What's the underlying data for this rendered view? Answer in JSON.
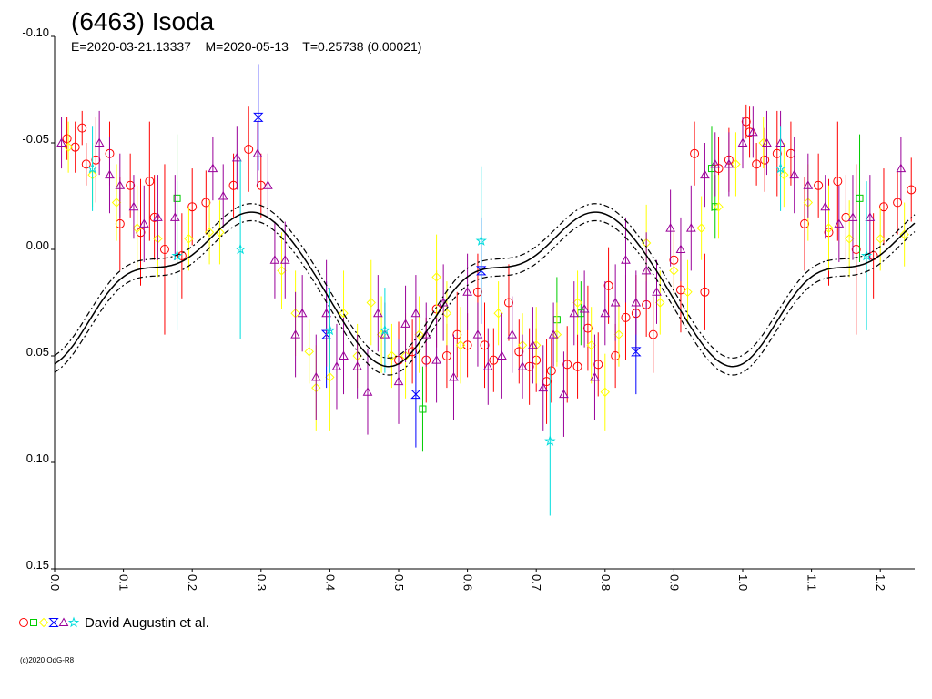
{
  "chart_data": {
    "type": "scatter",
    "title": "(6463) Isoda",
    "subtitle": "E=2020-03-21.13337    M=2020-05-13    T=0.25738 (0.00021)",
    "xlabel": "",
    "ylabel": "",
    "xlim": [
      0.0,
      1.25
    ],
    "ylim": [
      -0.1,
      0.15
    ],
    "y_inverted": true,
    "x_ticks": [
      "0.0",
      "0.1",
      "0.2",
      "0.3",
      "0.4",
      "0.5",
      "0.6",
      "0.7",
      "0.8",
      "0.9",
      "1.0",
      "1.1",
      "1.2"
    ],
    "y_ticks": [
      "-0.10",
      "-0.05",
      "0.00",
      "0.05",
      "0.10",
      "0.15"
    ],
    "grid": false,
    "legend": {
      "position": "bottom-left",
      "label": "David Augustin et al."
    },
    "credit": "(c)2020 OdG-R8",
    "fit_curve": {
      "mean": 0.0152,
      "harmonics": [
        {
          "n": 2,
          "a": 0.0305,
          "b": 0.0005
        },
        {
          "n": 4,
          "a": 0.0055,
          "b": -0.0088
        },
        {
          "n": 6,
          "a": 0.0025,
          "b": 0.001
        }
      ],
      "band": 0.004
    },
    "series": [
      {
        "color": "#ff0000",
        "marker": "circle",
        "points": [
          [
            0.018,
            -0.052,
            0.01
          ],
          [
            0.03,
            -0.048,
            0.012
          ],
          [
            0.04,
            -0.057,
            0.008
          ],
          [
            0.046,
            -0.04,
            0.01
          ],
          [
            0.06,
            -0.042,
            0.02
          ],
          [
            0.08,
            -0.045,
            0.015
          ],
          [
            0.095,
            -0.012,
            0.022
          ],
          [
            0.11,
            -0.03,
            0.015
          ],
          [
            0.125,
            -0.008,
            0.025
          ],
          [
            0.138,
            -0.032,
            0.028
          ],
          [
            0.145,
            -0.015,
            0.02
          ],
          [
            0.16,
            0.0,
            0.04
          ],
          [
            0.185,
            0.003,
            0.02
          ],
          [
            0.2,
            -0.02,
            0.018
          ],
          [
            0.22,
            -0.022,
            0.015
          ],
          [
            0.26,
            -0.03,
            0.015
          ],
          [
            0.282,
            -0.047,
            0.02
          ],
          [
            0.3,
            -0.03,
            0.015
          ],
          [
            0.5,
            0.052,
            0.018
          ],
          [
            0.52,
            0.048,
            0.015
          ],
          [
            0.54,
            0.052,
            0.02
          ],
          [
            0.555,
            0.028,
            0.018
          ],
          [
            0.57,
            0.05,
            0.015
          ],
          [
            0.585,
            0.04,
            0.02
          ],
          [
            0.6,
            0.045,
            0.015
          ],
          [
            0.615,
            0.02,
            0.018
          ],
          [
            0.625,
            0.045,
            0.02
          ],
          [
            0.638,
            0.052,
            0.015
          ],
          [
            0.66,
            0.025,
            0.018
          ],
          [
            0.675,
            0.048,
            0.015
          ],
          [
            0.69,
            0.055,
            0.018
          ],
          [
            0.7,
            0.052,
            0.015
          ],
          [
            0.715,
            0.062,
            0.02
          ],
          [
            0.722,
            0.057,
            0.015
          ],
          [
            0.745,
            0.054,
            0.018
          ],
          [
            0.76,
            0.055,
            0.015
          ],
          [
            0.775,
            0.037,
            0.02
          ],
          [
            0.79,
            0.054,
            0.015
          ],
          [
            0.805,
            0.017,
            0.018
          ],
          [
            0.815,
            0.05,
            0.015
          ],
          [
            0.83,
            0.032,
            0.02
          ],
          [
            0.845,
            0.03,
            0.018
          ],
          [
            0.86,
            0.026,
            0.015
          ],
          [
            0.87,
            0.04,
            0.018
          ],
          [
            0.9,
            0.005,
            0.015
          ],
          [
            0.91,
            0.019,
            0.02
          ],
          [
            0.93,
            -0.045,
            0.015
          ],
          [
            0.945,
            0.02,
            0.018
          ],
          [
            0.965,
            -0.038,
            0.015
          ],
          [
            0.98,
            -0.042,
            0.015
          ],
          [
            1.005,
            -0.06,
            0.008
          ],
          [
            1.01,
            -0.055,
            0.012
          ],
          [
            1.02,
            -0.04,
            0.01
          ],
          [
            1.032,
            -0.042,
            0.015
          ],
          [
            1.05,
            -0.045,
            0.02
          ],
          [
            1.07,
            -0.045,
            0.015
          ],
          [
            1.09,
            -0.012,
            0.022
          ],
          [
            1.11,
            -0.03,
            0.015
          ],
          [
            1.125,
            -0.008,
            0.025
          ],
          [
            1.138,
            -0.032,
            0.028
          ],
          [
            1.15,
            -0.015,
            0.02
          ],
          [
            1.165,
            0.0,
            0.04
          ],
          [
            1.19,
            0.003,
            0.02
          ],
          [
            1.205,
            -0.02,
            0.018
          ],
          [
            1.225,
            -0.022,
            0.015
          ],
          [
            1.245,
            -0.028,
            0.015
          ]
        ]
      },
      {
        "color": "#00cc00",
        "marker": "square",
        "points": [
          [
            0.178,
            -0.024,
            0.03
          ],
          [
            0.535,
            0.075,
            0.02
          ],
          [
            0.73,
            0.033,
            0.02
          ],
          [
            0.765,
            0.03,
            0.015
          ],
          [
            0.955,
            -0.038,
            0.02
          ],
          [
            0.96,
            -0.02,
            0.015
          ],
          [
            1.17,
            -0.024,
            0.03
          ]
        ]
      },
      {
        "color": "#ffff00",
        "marker": "diamond",
        "points": [
          [
            0.02,
            -0.048,
            0.012
          ],
          [
            0.055,
            -0.035,
            0.015
          ],
          [
            0.09,
            -0.022,
            0.018
          ],
          [
            0.12,
            -0.01,
            0.02
          ],
          [
            0.15,
            -0.005,
            0.018
          ],
          [
            0.195,
            -0.005,
            0.015
          ],
          [
            0.225,
            -0.008,
            0.015
          ],
          [
            0.24,
            -0.008,
            0.015
          ],
          [
            0.33,
            0.01,
            0.018
          ],
          [
            0.35,
            0.03,
            0.02
          ],
          [
            0.37,
            0.048,
            0.015
          ],
          [
            0.38,
            0.065,
            0.02
          ],
          [
            0.4,
            0.06,
            0.025
          ],
          [
            0.42,
            0.03,
            0.02
          ],
          [
            0.44,
            0.05,
            0.015
          ],
          [
            0.46,
            0.025,
            0.02
          ],
          [
            0.475,
            0.04,
            0.018
          ],
          [
            0.49,
            0.05,
            0.015
          ],
          [
            0.51,
            0.05,
            0.02
          ],
          [
            0.53,
            0.04,
            0.018
          ],
          [
            0.555,
            0.013,
            0.02
          ],
          [
            0.57,
            0.03,
            0.015
          ],
          [
            0.59,
            0.045,
            0.018
          ],
          [
            0.645,
            0.03,
            0.015
          ],
          [
            0.68,
            0.045,
            0.015
          ],
          [
            0.7,
            0.045,
            0.018
          ],
          [
            0.73,
            0.04,
            0.015
          ],
          [
            0.76,
            0.025,
            0.015
          ],
          [
            0.78,
            0.045,
            0.018
          ],
          [
            0.8,
            0.067,
            0.018
          ],
          [
            0.82,
            0.04,
            0.015
          ],
          [
            0.86,
            -0.003,
            0.018
          ],
          [
            0.88,
            0.025,
            0.015
          ],
          [
            0.9,
            0.01,
            0.018
          ],
          [
            0.92,
            0.02,
            0.015
          ],
          [
            0.94,
            -0.01,
            0.015
          ],
          [
            0.965,
            -0.02,
            0.015
          ],
          [
            0.99,
            -0.04,
            0.015
          ],
          [
            1.03,
            -0.05,
            0.012
          ],
          [
            1.06,
            -0.035,
            0.015
          ],
          [
            1.095,
            -0.022,
            0.018
          ],
          [
            1.125,
            -0.01,
            0.02
          ],
          [
            1.155,
            -0.005,
            0.018
          ],
          [
            1.2,
            -0.005,
            0.015
          ],
          [
            1.235,
            -0.007,
            0.015
          ]
        ]
      },
      {
        "color": "#0000ff",
        "marker": "hourglass",
        "points": [
          [
            0.296,
            -0.062,
            0.025
          ],
          [
            0.395,
            0.04,
            0.025
          ],
          [
            0.525,
            0.068,
            0.025
          ],
          [
            0.62,
            0.01,
            0.025
          ],
          [
            0.845,
            0.048,
            0.02
          ]
        ]
      },
      {
        "color": "#990099",
        "marker": "triangle",
        "points": [
          [
            0.01,
            -0.05,
            0.012
          ],
          [
            0.065,
            -0.05,
            0.015
          ],
          [
            0.08,
            -0.035,
            0.018
          ],
          [
            0.095,
            -0.03,
            0.015
          ],
          [
            0.115,
            -0.02,
            0.015
          ],
          [
            0.13,
            -0.012,
            0.018
          ],
          [
            0.15,
            -0.015,
            0.02
          ],
          [
            0.175,
            -0.015,
            0.02
          ],
          [
            0.23,
            -0.038,
            0.015
          ],
          [
            0.245,
            -0.025,
            0.015
          ],
          [
            0.265,
            -0.043,
            0.015
          ],
          [
            0.295,
            -0.045,
            0.015
          ],
          [
            0.31,
            -0.03,
            0.015
          ],
          [
            0.32,
            0.005,
            0.018
          ],
          [
            0.335,
            0.005,
            0.018
          ],
          [
            0.35,
            0.04,
            0.02
          ],
          [
            0.36,
            0.03,
            0.018
          ],
          [
            0.38,
            0.06,
            0.02
          ],
          [
            0.395,
            0.03,
            0.025
          ],
          [
            0.41,
            0.055,
            0.02
          ],
          [
            0.42,
            0.05,
            0.018
          ],
          [
            0.44,
            0.055,
            0.015
          ],
          [
            0.455,
            0.067,
            0.02
          ],
          [
            0.47,
            0.03,
            0.018
          ],
          [
            0.48,
            0.04,
            0.015
          ],
          [
            0.5,
            0.062,
            0.02
          ],
          [
            0.51,
            0.035,
            0.018
          ],
          [
            0.525,
            0.03,
            0.018
          ],
          [
            0.54,
            0.04,
            0.015
          ],
          [
            0.555,
            0.052,
            0.02
          ],
          [
            0.565,
            0.025,
            0.018
          ],
          [
            0.58,
            0.06,
            0.02
          ],
          [
            0.6,
            0.02,
            0.018
          ],
          [
            0.615,
            0.04,
            0.015
          ],
          [
            0.63,
            0.055,
            0.018
          ],
          [
            0.65,
            0.05,
            0.02
          ],
          [
            0.665,
            0.04,
            0.018
          ],
          [
            0.68,
            0.055,
            0.015
          ],
          [
            0.695,
            0.045,
            0.018
          ],
          [
            0.71,
            0.065,
            0.02
          ],
          [
            0.725,
            0.04,
            0.015
          ],
          [
            0.74,
            0.068,
            0.02
          ],
          [
            0.755,
            0.03,
            0.015
          ],
          [
            0.77,
            0.028,
            0.018
          ],
          [
            0.785,
            0.06,
            0.02
          ],
          [
            0.8,
            0.03,
            0.015
          ],
          [
            0.815,
            0.025,
            0.018
          ],
          [
            0.83,
            0.005,
            0.02
          ],
          [
            0.845,
            0.025,
            0.015
          ],
          [
            0.86,
            0.01,
            0.018
          ],
          [
            0.875,
            0.02,
            0.015
          ],
          [
            0.895,
            -0.01,
            0.018
          ],
          [
            0.91,
            0.0,
            0.015
          ],
          [
            0.925,
            -0.01,
            0.02
          ],
          [
            0.945,
            -0.035,
            0.015
          ],
          [
            0.96,
            -0.04,
            0.015
          ],
          [
            0.98,
            -0.04,
            0.015
          ],
          [
            1.0,
            -0.05,
            0.012
          ],
          [
            1.015,
            -0.055,
            0.012
          ],
          [
            1.035,
            -0.05,
            0.015
          ],
          [
            1.055,
            -0.05,
            0.015
          ],
          [
            1.075,
            -0.035,
            0.018
          ],
          [
            1.095,
            -0.03,
            0.015
          ],
          [
            1.12,
            -0.02,
            0.015
          ],
          [
            1.14,
            -0.012,
            0.018
          ],
          [
            1.16,
            -0.015,
            0.02
          ],
          [
            1.185,
            -0.015,
            0.02
          ],
          [
            1.23,
            -0.038,
            0.015
          ]
        ]
      },
      {
        "color": "#00dddd",
        "marker": "star",
        "points": [
          [
            0.055,
            -0.038,
            0.02
          ],
          [
            0.178,
            0.003,
            0.035
          ],
          [
            0.27,
            0.0,
            0.042
          ],
          [
            0.4,
            0.038,
            0.02
          ],
          [
            0.48,
            0.038,
            0.02
          ],
          [
            0.62,
            -0.004,
            0.035
          ],
          [
            0.72,
            0.09,
            0.035
          ],
          [
            1.055,
            -0.038,
            0.02
          ],
          [
            1.18,
            0.003,
            0.035
          ]
        ]
      }
    ]
  }
}
